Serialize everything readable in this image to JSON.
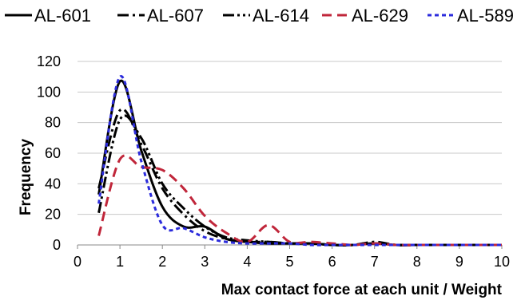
{
  "chart_data": {
    "type": "line",
    "xlabel": "Max contact force at each unit / Weight",
    "ylabel": "Frequency",
    "xlim": [
      0,
      10
    ],
    "ylim": [
      0,
      120
    ],
    "x_ticks": [
      0,
      1,
      2,
      3,
      4,
      5,
      6,
      7,
      8,
      9,
      10
    ],
    "y_ticks": [
      0,
      20,
      40,
      60,
      80,
      100,
      120
    ],
    "grid": "horizontal",
    "legend_position": "top",
    "series": [
      {
        "name": "AL-601",
        "color": "#000000",
        "dash": "solid",
        "x": [
          0.5,
          1.0,
          1.5,
          2.0,
          2.5,
          3.0,
          3.5,
          4.0,
          4.5,
          5.0,
          5.5,
          6.0,
          6.5,
          7.0,
          7.5,
          8.0,
          8.5,
          9.0,
          9.5,
          10.0
        ],
        "y": [
          33,
          107,
          62,
          25,
          12,
          12,
          4,
          2,
          1,
          1,
          1,
          0,
          0,
          1,
          0,
          0,
          0,
          0,
          0,
          0
        ]
      },
      {
        "name": "AL-607",
        "color": "#000000",
        "dash": "dash-dot",
        "x": [
          0.5,
          1.0,
          1.5,
          2.0,
          2.5,
          3.0,
          3.5,
          4.0,
          4.5,
          5.0,
          5.5,
          6.0,
          6.5,
          7.0,
          7.5,
          8.0,
          8.5,
          9.0,
          9.5,
          10.0
        ],
        "y": [
          37,
          88,
          66,
          37,
          20,
          9,
          4,
          2,
          2,
          1,
          1,
          0,
          0,
          2,
          0,
          0,
          0,
          0,
          0,
          0
        ]
      },
      {
        "name": "AL-614",
        "color": "#000000",
        "dash": "dash-dot-dot",
        "x": [
          0.5,
          1.0,
          1.5,
          2.0,
          2.5,
          3.0,
          3.5,
          4.0,
          4.5,
          5.0,
          5.5,
          6.0,
          6.5,
          7.0,
          7.5,
          8.0,
          8.5,
          9.0,
          9.5,
          10.0
        ],
        "y": [
          21,
          82,
          70,
          40,
          24,
          12,
          5,
          3,
          2,
          1,
          1,
          0,
          0,
          1,
          0,
          0,
          0,
          0,
          0,
          0
        ]
      },
      {
        "name": "AL-629",
        "color": "#c0263a",
        "dash": "dash",
        "x": [
          0.5,
          1.0,
          1.5,
          2.0,
          2.5,
          3.0,
          3.5,
          4.0,
          4.5,
          5.0,
          5.5,
          6.0,
          6.5,
          7.0,
          7.5,
          8.0,
          8.5,
          9.0,
          9.5,
          10.0
        ],
        "y": [
          6,
          56,
          51,
          49,
          37,
          19,
          8,
          2,
          13,
          2,
          2,
          1,
          0,
          1,
          0,
          0,
          0,
          0,
          0,
          0
        ]
      },
      {
        "name": "AL-589",
        "color": "#2b2bdc",
        "dash": "dot",
        "x": [
          0.5,
          1.0,
          1.5,
          2.0,
          2.5,
          3.0,
          3.5,
          4.0,
          4.5,
          5.0,
          5.5,
          6.0,
          6.5,
          7.0,
          7.5,
          8.0,
          8.5,
          9.0,
          9.5,
          10.0
        ],
        "y": [
          27,
          110,
          55,
          13,
          11,
          5,
          2,
          1,
          1,
          1,
          0,
          0,
          0,
          0,
          0,
          0,
          0,
          0,
          0,
          0
        ]
      }
    ]
  }
}
